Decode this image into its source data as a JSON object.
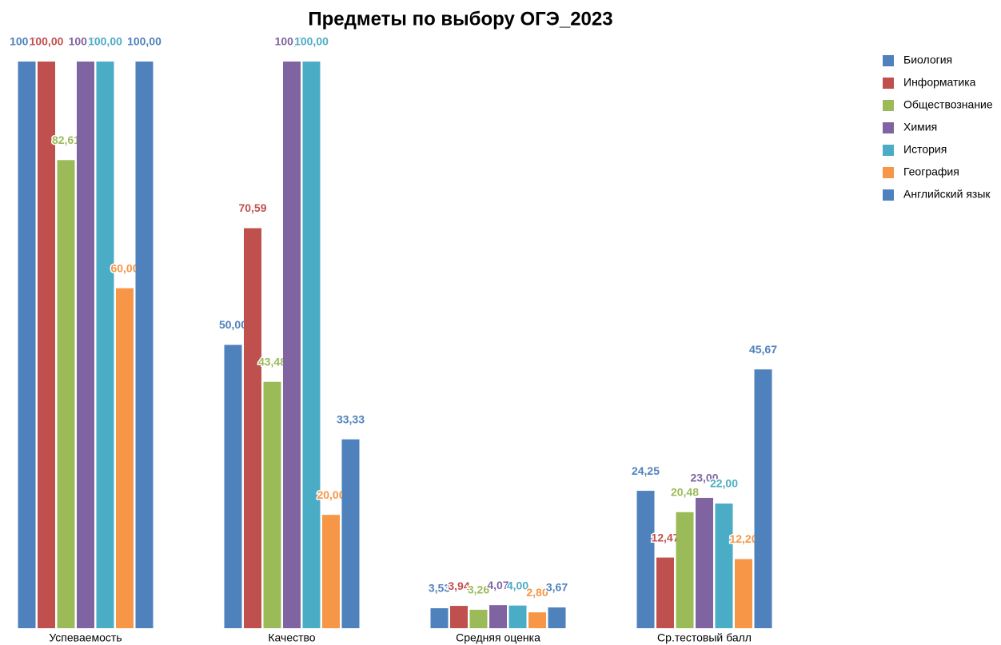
{
  "chart_data": {
    "type": "bar",
    "title": "Предметы по выбору ОГЭ_2023",
    "categories": [
      "Успеваемость",
      "Качество",
      "Средняя оценка",
      "Ср.тестовый балл"
    ],
    "ylim": [
      0,
      100
    ],
    "grid": false,
    "legend": "right",
    "series": [
      {
        "name": "Биология",
        "color": "#4f81bd",
        "values": [
          100,
          50,
          3.53,
          24.25
        ],
        "value_labels": [
          "100,00",
          "50,00",
          "3,53",
          "24,25"
        ]
      },
      {
        "name": "Информатика",
        "color": "#c0504d",
        "values": [
          100,
          70.59,
          3.94,
          12.47
        ],
        "value_labels": [
          "100,00",
          "70,59",
          "3,94",
          "12,47"
        ]
      },
      {
        "name": "Обществознание",
        "color": "#9bbb59",
        "values": [
          82.61,
          43.48,
          3.26,
          20.48
        ],
        "value_labels": [
          "82,61",
          "43,48",
          "3,26",
          "20,48"
        ]
      },
      {
        "name": "Химия",
        "color": "#8064a2",
        "values": [
          100,
          100,
          4.07,
          23
        ],
        "value_labels": [
          "100,00",
          "100,00",
          "4,07",
          "23,00"
        ]
      },
      {
        "name": "История",
        "color": "#4bacc6",
        "values": [
          100,
          100,
          4,
          22
        ],
        "value_labels": [
          "100,00",
          "100,00",
          "4,00",
          "22,00"
        ]
      },
      {
        "name": "География",
        "color": "#f79646",
        "values": [
          60,
          20,
          2.8,
          12.2
        ],
        "value_labels": [
          "60,00",
          "20,00",
          "2,80",
          "12,20"
        ]
      },
      {
        "name": "Английский язык",
        "color": "#4f81bd",
        "values": [
          100,
          33.33,
          3.67,
          45.67
        ],
        "value_labels": [
          "100,00",
          "33,33",
          "3,67",
          "45,67"
        ]
      }
    ]
  }
}
